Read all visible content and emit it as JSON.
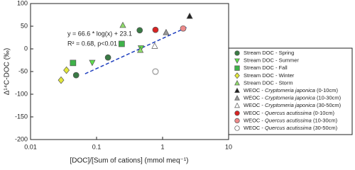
{
  "chart_data": {
    "type": "scatter",
    "x_label": "[DOC]/[Sum of cations] (mmol meq⁻¹)",
    "y_label": "Δ¹⁴C-DOC (‰)",
    "xscale": "log",
    "xlim": [
      0.01,
      10
    ],
    "xticks": [
      0.01,
      0.1,
      1,
      10
    ],
    "ylim": [
      -200,
      100
    ],
    "yticks": [
      -200,
      -150,
      -100,
      -50,
      0,
      50,
      100
    ],
    "annotations": [
      "y = 66.6 * log(x) + 23.1",
      "R² = 0.68, p<0.01"
    ],
    "trendline": {
      "x": [
        0.067,
        2.37
      ],
      "y": [
        -55,
        48
      ],
      "color": "#1f3fbf"
    },
    "series": [
      {
        "name": "Stream DOC - Spring",
        "color": "#3a7a45",
        "marker": "circle",
        "x": [
          0.049,
          0.149,
          0.45
        ],
        "values": [
          -58,
          -19,
          41
        ]
      },
      {
        "name": "Stream DOC - Summer",
        "color": "#5ee04a",
        "marker": "triangle-down",
        "x": [
          0.086,
          0.47
        ],
        "values": [
          -30,
          2
        ]
      },
      {
        "name": "Stream DOC - Fall",
        "color": "#3fb34a",
        "marker": "square",
        "x": [
          0.044,
          0.24
        ],
        "values": [
          -31,
          11
        ]
      },
      {
        "name": "Stream DOC - Winter",
        "color": "#e3e83a",
        "marker": "diamond",
        "x": [
          0.029,
          0.035
        ],
        "values": [
          -69,
          -47
        ]
      },
      {
        "name": "Stream DOC - Storm",
        "color": "#8fdc6a",
        "marker": "triangle-up",
        "x": [
          0.25,
          0.46
        ],
        "values": [
          52,
          -3
        ]
      },
      {
        "name": "WEOC - Cryptomeria japonica (0-10cm)",
        "color": "#222222",
        "marker": "triangle-up",
        "x": [
          2.57
        ],
        "values": [
          72
        ]
      },
      {
        "name": "WEOC - Cryptomeria japonica (10-30cm)",
        "color": "#9a9a9a",
        "marker": "triangle-up",
        "x": [
          1.13
        ],
        "values": [
          36
        ]
      },
      {
        "name": "WEOC - Cryptomeria japonica (30-50cm)",
        "color": "#ffffff",
        "marker": "triangle-up",
        "x": [
          0.76
        ],
        "values": [
          6
        ]
      },
      {
        "name": "WEOC - Quercus acutissima (0-10cm)",
        "color": "#d92323",
        "marker": "circle",
        "x": [
          0.78
        ],
        "values": [
          42
        ]
      },
      {
        "name": "WEOC - Quercus acutissima (10-30cm)",
        "color": "#ee8a8a",
        "marker": "circle",
        "x": [
          2.05
        ],
        "values": [
          45
        ]
      },
      {
        "name": "WEOC - Quercus acutissima (30-50cm)",
        "color": "#ffffff",
        "marker": "circle",
        "x": [
          0.78
        ],
        "values": [
          -50
        ]
      }
    ]
  }
}
